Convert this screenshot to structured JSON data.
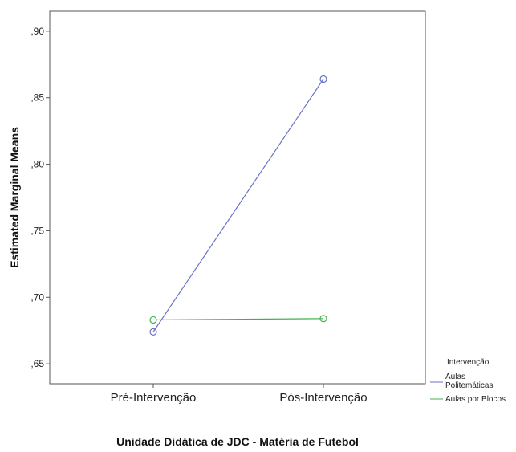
{
  "chart_data": {
    "type": "line",
    "categories": [
      "Pré-Intervenção",
      "Pós-Intervenção"
    ],
    "series": [
      {
        "name": "Aulas Politemáticas",
        "values": [
          0.674,
          0.864
        ],
        "color": "#6b73c7"
      },
      {
        "name": "Aulas por Blocos",
        "values": [
          0.683,
          0.684
        ],
        "color": "#3cb44b"
      }
    ],
    "ylim": [
      0.635,
      0.915
    ],
    "yticks": [
      ",65",
      ",70",
      ",75",
      ",80",
      ",85",
      ",90"
    ],
    "ytick_values": [
      0.65,
      0.7,
      0.75,
      0.8,
      0.85,
      0.9
    ],
    "xlabel": "Unidade Didática de JDC - Matéria de Futebol",
    "ylabel": "Estimated Marginal Means",
    "legend_title": "Intervenção",
    "legend_position": "right",
    "legend_labels": [
      [
        "Aulas",
        "Politemáticas"
      ],
      [
        "Aulas por Blocos"
      ]
    ],
    "grid": false
  }
}
